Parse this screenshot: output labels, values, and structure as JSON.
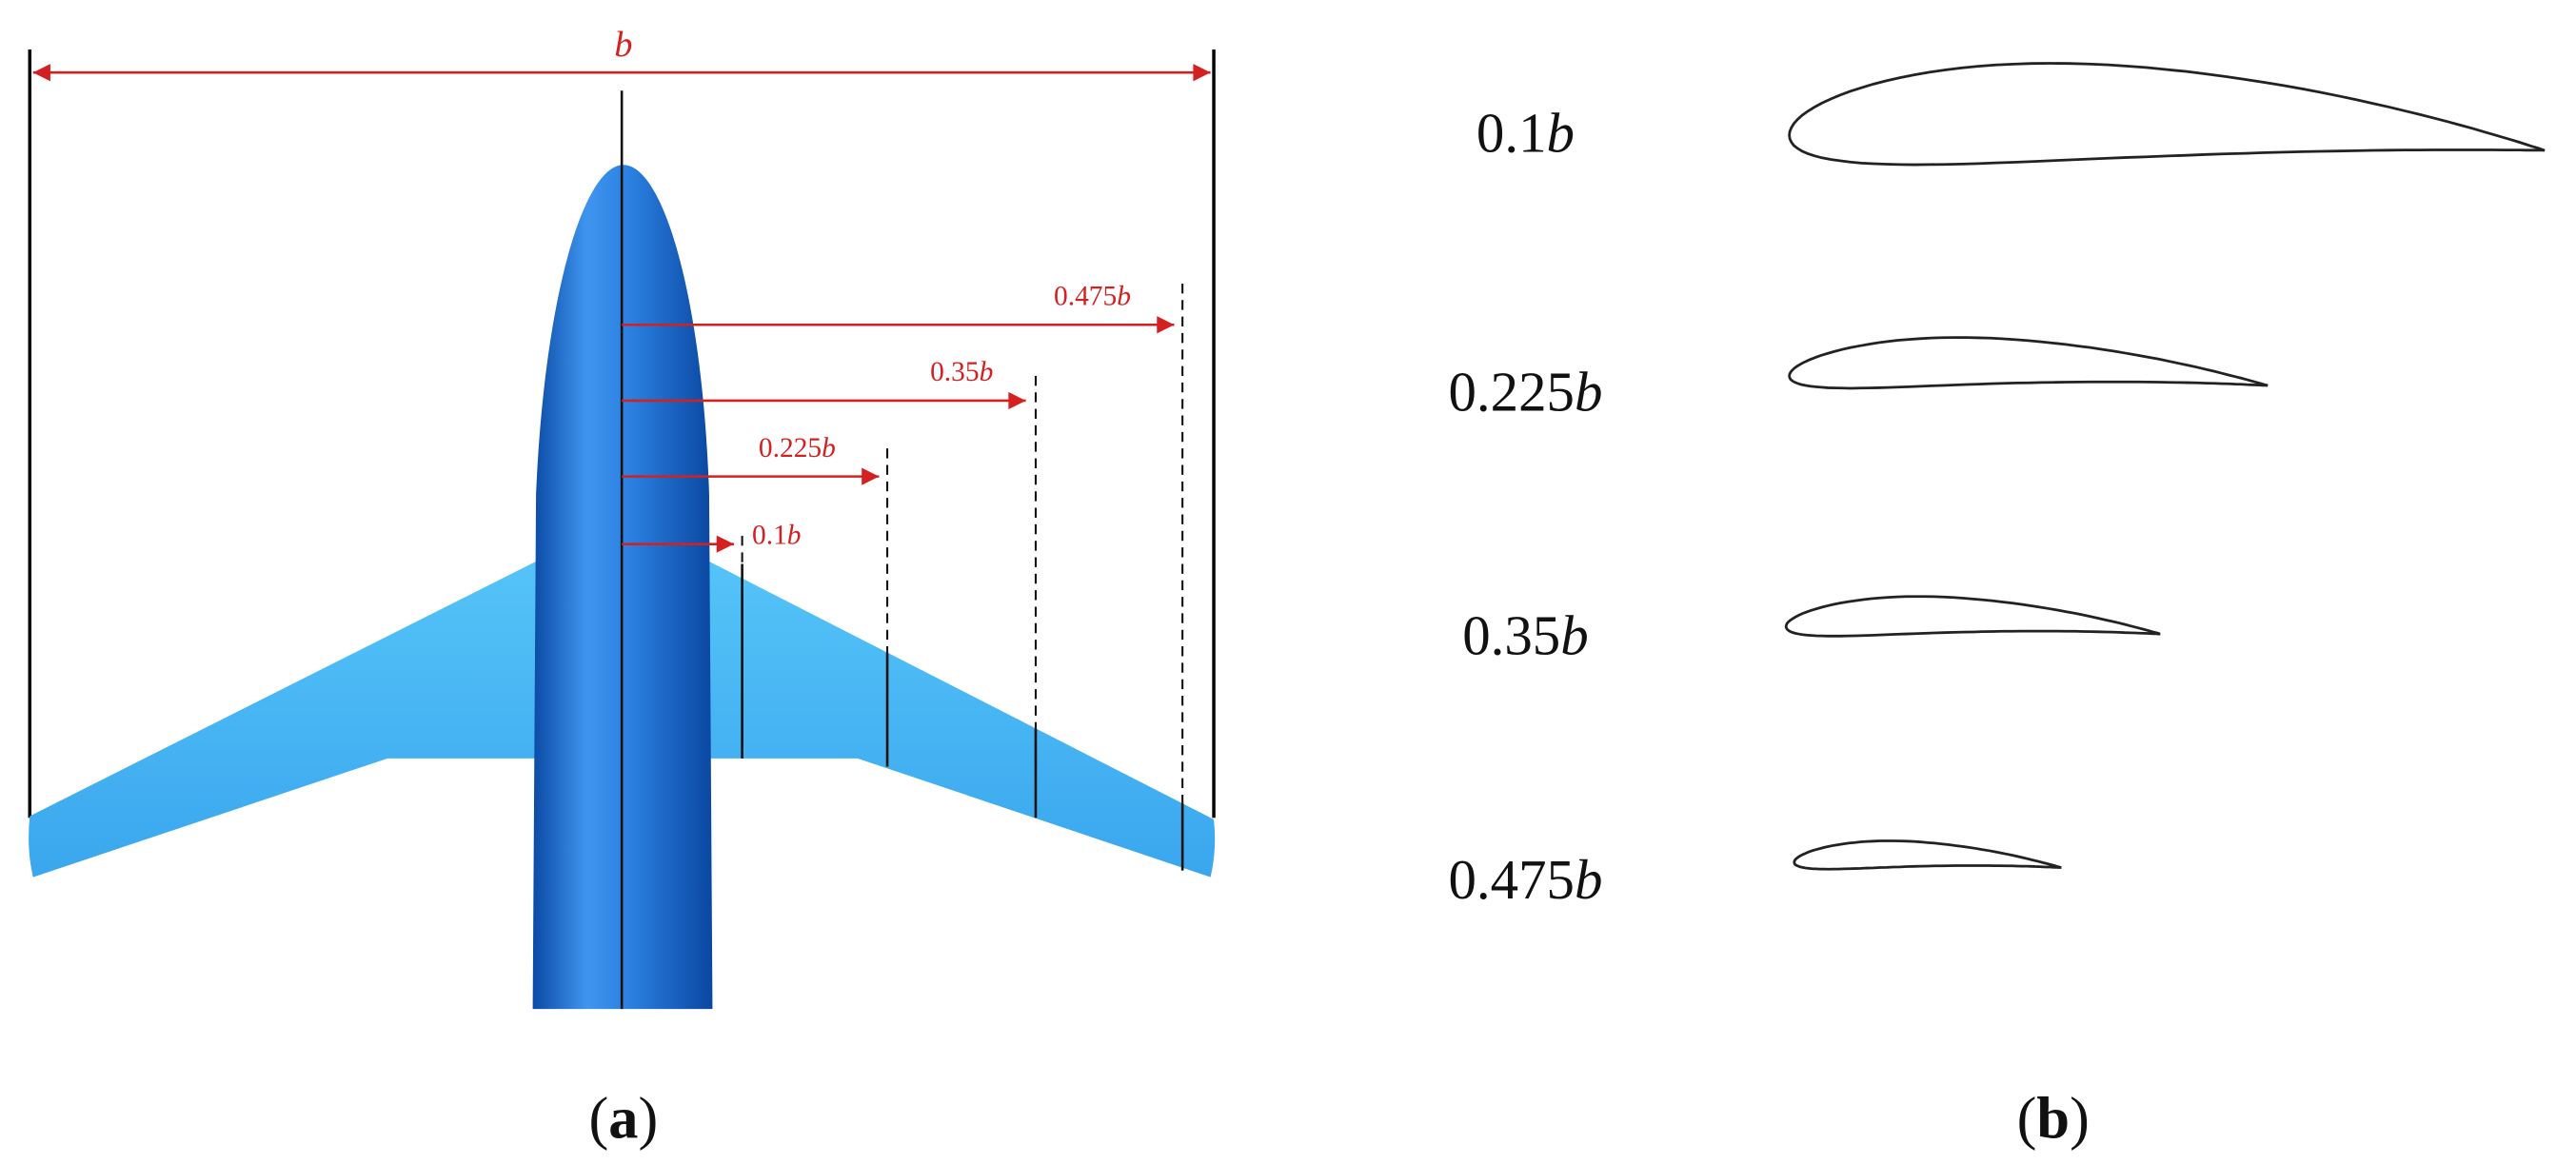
{
  "panel_a": {
    "span_label": "b",
    "stations": [
      "0.1b",
      "0.225b",
      "0.35b",
      "0.475b"
    ],
    "caption": "(a)"
  },
  "panel_b": {
    "sections": [
      "0.1b",
      "0.225b",
      "0.35b",
      "0.475b"
    ],
    "caption": "(b)"
  }
}
